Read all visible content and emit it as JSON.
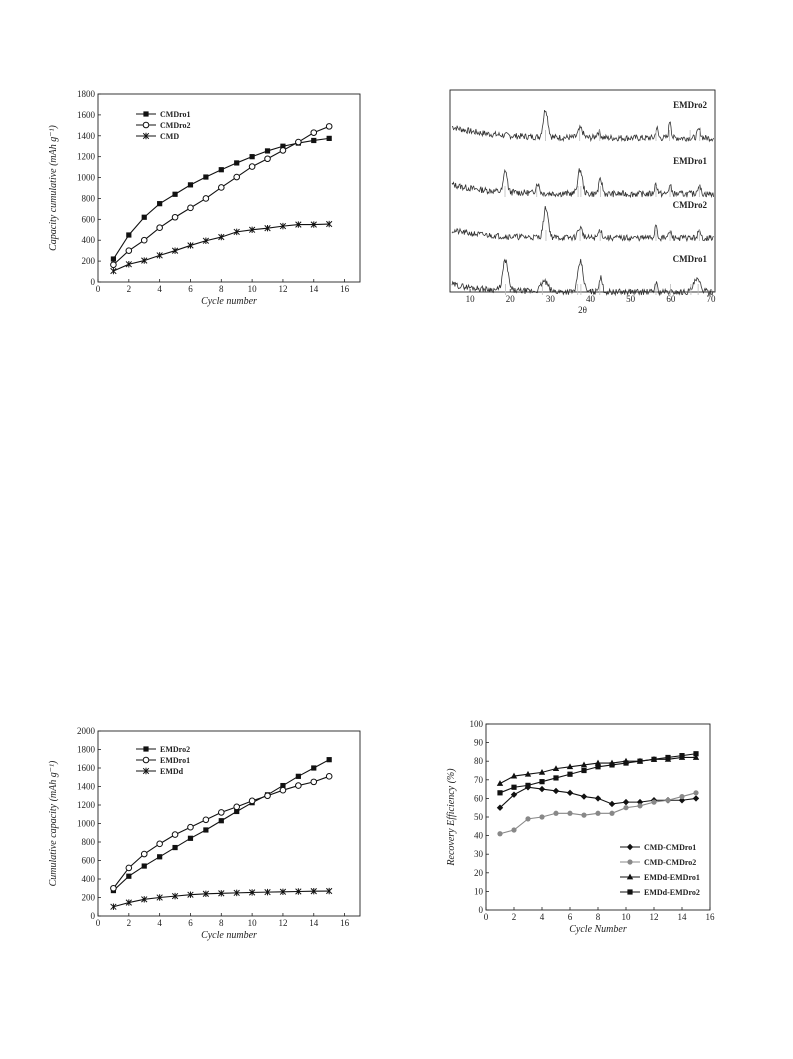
{
  "chart_data": [
    {
      "id": "p1",
      "type": "line",
      "title": "",
      "xlabel": "Cycle number",
      "ylabel": "Capacity cumulative (mAh g⁻¹)",
      "xlim": [
        0,
        17
      ],
      "ylim": [
        0,
        1800
      ],
      "xticks": [
        0,
        2,
        4,
        6,
        8,
        10,
        12,
        14,
        16
      ],
      "yticks": [
        0,
        200,
        400,
        600,
        800,
        1000,
        1200,
        1400,
        1600,
        1800
      ],
      "legend_position": "top-left",
      "x": [
        1,
        2,
        3,
        4,
        5,
        6,
        7,
        8,
        9,
        10,
        11,
        12,
        13,
        14,
        15
      ],
      "series": [
        {
          "name": "CMDro1",
          "marker": "square",
          "values": [
            220,
            450,
            620,
            750,
            840,
            930,
            1005,
            1075,
            1140,
            1200,
            1255,
            1300,
            1330,
            1355,
            1375
          ]
        },
        {
          "name": "CMDro2",
          "marker": "circle-open",
          "values": [
            165,
            300,
            400,
            520,
            620,
            710,
            800,
            905,
            1005,
            1105,
            1180,
            1260,
            1340,
            1430,
            1490
          ]
        },
        {
          "name": "CMD",
          "marker": "star",
          "values": [
            105,
            170,
            205,
            255,
            300,
            350,
            395,
            430,
            480,
            500,
            515,
            535,
            550,
            550,
            555
          ]
        }
      ]
    },
    {
      "id": "p2",
      "type": "line",
      "title": "",
      "xlabel": "2θ",
      "ylabel": "",
      "xlim": [
        5,
        71
      ],
      "xticks": [
        10,
        20,
        30,
        40,
        50,
        60,
        70
      ],
      "yticks": [],
      "traces": [
        {
          "name": "EMDro2",
          "baseline": 58,
          "bg_slope": 12,
          "noise": 3.2,
          "seed": 7,
          "peaks": [
            [
              28.8,
              28,
              0.8
            ],
            [
              37.5,
              9,
              0.8
            ],
            [
              42.0,
              6,
              0.7
            ],
            [
              56.5,
              10,
              0.4
            ],
            [
              59.8,
              18,
              0.4
            ],
            [
              67.0,
              8,
              0.6
            ]
          ],
          "bars": [
            28.8,
            37.3,
            42.3,
            56.3,
            59.7,
            64.8,
            67.2
          ]
        },
        {
          "name": "EMDro1",
          "baseline": 114,
          "bg_slope": 10,
          "noise": 3.2,
          "seed": 13,
          "peaks": [
            [
              18.8,
              22,
              0.6
            ],
            [
              26.8,
              10,
              0.6
            ],
            [
              37.4,
              24,
              0.8
            ],
            [
              42.5,
              14,
              0.6
            ],
            [
              56.3,
              10,
              0.5
            ],
            [
              59.8,
              8,
              0.5
            ],
            [
              67.0,
              8,
              0.6
            ]
          ],
          "bars": [
            18.7,
            26.6,
            36.9,
            37.6,
            42.5,
            56.3,
            59.8,
            67.1
          ]
        },
        {
          "name": "CMDro2",
          "baseline": 158,
          "bg_slope": 8,
          "noise": 3.0,
          "seed": 21,
          "peaks": [
            [
              28.9,
              30,
              0.8
            ],
            [
              37.4,
              10,
              0.8
            ],
            [
              42.4,
              8,
              0.6
            ],
            [
              56.3,
              14,
              0.4
            ],
            [
              59.8,
              6,
              0.5
            ],
            [
              67.0,
              6,
              0.5
            ]
          ],
          "bars": [
            28.9,
            37.4,
            42.4,
            56.3,
            59.8,
            67.1
          ]
        },
        {
          "name": "CMDro1",
          "baseline": 212,
          "bg_slope": 8,
          "noise": 3.0,
          "seed": 29,
          "peaks": [
            [
              18.8,
              30,
              0.9
            ],
            [
              28.5,
              10,
              1.2
            ],
            [
              37.5,
              30,
              0.9
            ],
            [
              42.5,
              14,
              0.6
            ],
            [
              56.3,
              10,
              0.4
            ],
            [
              66.5,
              12,
              1.2
            ]
          ],
          "bars": [
            18.8,
            28.0,
            36.8,
            37.6,
            42.3,
            56.3,
            59.9,
            65.0,
            66.8
          ]
        }
      ],
      "labels": [
        "EMDro2",
        "EMDro1",
        "CMDro2",
        "CMDro1"
      ]
    },
    {
      "id": "p3",
      "type": "line",
      "title": "",
      "xlabel": "Cycle number",
      "ylabel": "Cumulative capacity (mAh g⁻¹)",
      "xlim": [
        0,
        17
      ],
      "ylim": [
        0,
        2000
      ],
      "xticks": [
        0,
        2,
        4,
        6,
        8,
        10,
        12,
        14,
        16
      ],
      "yticks": [
        0,
        200,
        400,
        600,
        800,
        1000,
        1200,
        1400,
        1600,
        1800,
        2000
      ],
      "legend_position": "top-left",
      "x": [
        1,
        2,
        3,
        4,
        5,
        6,
        7,
        8,
        9,
        10,
        11,
        12,
        13,
        14,
        15
      ],
      "series": [
        {
          "name": "EMDro2",
          "marker": "square",
          "values": [
            275,
            430,
            540,
            640,
            740,
            840,
            930,
            1030,
            1130,
            1225,
            1310,
            1410,
            1510,
            1600,
            1690
          ]
        },
        {
          "name": "EMDro1",
          "marker": "circle-open",
          "values": [
            300,
            520,
            670,
            780,
            880,
            960,
            1040,
            1120,
            1180,
            1245,
            1300,
            1360,
            1410,
            1450,
            1510
          ]
        },
        {
          "name": "EMDd",
          "marker": "star",
          "values": [
            100,
            145,
            180,
            200,
            215,
            230,
            240,
            245,
            250,
            255,
            258,
            262,
            265,
            268,
            270
          ]
        }
      ]
    },
    {
      "id": "p4",
      "type": "line",
      "title": "",
      "xlabel": "Cycle Number",
      "ylabel": "Recovery Efficiency (%)",
      "xlim": [
        0,
        16
      ],
      "ylim": [
        0,
        100
      ],
      "xticks": [
        0,
        2,
        4,
        6,
        8,
        10,
        12,
        14,
        16
      ],
      "yticks": [
        0,
        10,
        20,
        30,
        40,
        50,
        60,
        70,
        80,
        90,
        100
      ],
      "legend_position": "bottom-right",
      "x": [
        1,
        2,
        3,
        4,
        5,
        6,
        7,
        8,
        9,
        10,
        11,
        12,
        13,
        14,
        15
      ],
      "series": [
        {
          "name": "CMD-CMDro1",
          "marker": "diamond",
          "color": "#111111",
          "values": [
            55,
            62,
            66,
            65,
            64,
            63,
            61,
            60,
            57,
            58,
            58,
            59,
            59,
            59,
            60
          ]
        },
        {
          "name": "CMD-CMDro2",
          "marker": "circle",
          "color": "#888888",
          "values": [
            41,
            43,
            49,
            50,
            52,
            52,
            51,
            52,
            52,
            55,
            56,
            58,
            59,
            61,
            63
          ]
        },
        {
          "name": "EMDd-EMDro1",
          "marker": "triangle",
          "color": "#111111",
          "values": [
            68,
            72,
            73,
            74,
            76,
            77,
            78,
            79,
            79,
            80,
            80,
            81,
            81,
            82,
            82
          ]
        },
        {
          "name": "EMDd-EMDro2",
          "marker": "square",
          "color": "#111111",
          "values": [
            63,
            66,
            67,
            69,
            71,
            73,
            75,
            77,
            78,
            79,
            80,
            81,
            82,
            83,
            84
          ]
        }
      ]
    }
  ]
}
